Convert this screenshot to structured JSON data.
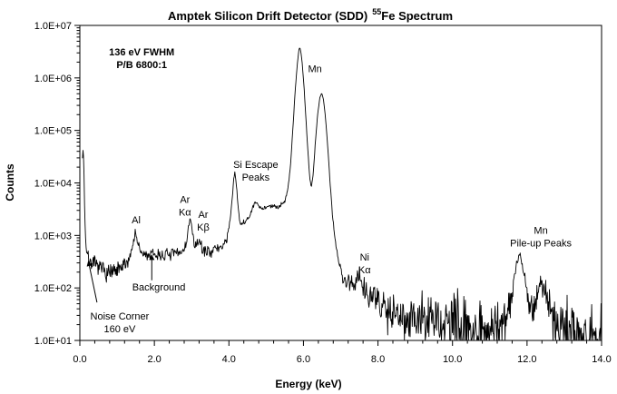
{
  "title": {
    "prefix": "Amptek Silicon Drift Detector (SDD)",
    "isotope": "55",
    "suffix": "Fe Spectrum"
  },
  "chart_data": {
    "type": "line",
    "title": "Amptek Silicon Drift Detector (SDD) 55Fe Spectrum",
    "xlabel": "Energy (keV)",
    "ylabel": "Counts",
    "grid": false,
    "legend": "none",
    "x_axis": {
      "min": 0,
      "max": 14,
      "major_step": 2,
      "minor_step": 0.4,
      "tick_labels": [
        "0.0",
        "2.0",
        "4.0",
        "6.0",
        "8.0",
        "10.0",
        "12.0",
        "14.0"
      ]
    },
    "y_axis": {
      "scale": "log",
      "min": 10,
      "max": 10000000,
      "tick_labels": [
        "1.0E+01",
        "1.0E+02",
        "1.0E+03",
        "1.0E+04",
        "1.0E+05",
        "1.0E+06",
        "1.0E+07"
      ]
    },
    "series": [
      {
        "name": "55Fe spectrum",
        "color": "#000000",
        "x": [
          0.07,
          0.09,
          0.11,
          0.13,
          0.16,
          0.2,
          0.25,
          0.32,
          0.42,
          0.55,
          0.7,
          0.85,
          1.0,
          1.15,
          1.28,
          1.38,
          1.44,
          1.49,
          1.54,
          1.6,
          1.7,
          1.85,
          2.0,
          2.2,
          2.4,
          2.6,
          2.75,
          2.86,
          2.92,
          2.96,
          3.0,
          3.06,
          3.12,
          3.16,
          3.19,
          3.23,
          3.3,
          3.4,
          3.55,
          3.7,
          3.85,
          3.95,
          4.03,
          4.09,
          4.13,
          4.16,
          4.2,
          4.25,
          4.3,
          4.36,
          4.45,
          4.55,
          4.63,
          4.7,
          4.76,
          4.83,
          4.92,
          5.0,
          5.1,
          5.2,
          5.3,
          5.4,
          5.5,
          5.58,
          5.65,
          5.72,
          5.78,
          5.84,
          5.88,
          5.9,
          5.93,
          5.97,
          6.02,
          6.07,
          6.12,
          6.17,
          6.21,
          6.26,
          6.32,
          6.38,
          6.44,
          6.49,
          6.54,
          6.6,
          6.66,
          6.72,
          6.78,
          6.84,
          6.91,
          6.98,
          7.06,
          7.15,
          7.25,
          7.35,
          7.44,
          7.5,
          7.56,
          7.65,
          7.78,
          7.92,
          8.1,
          8.3,
          8.55,
          8.8,
          9.1,
          9.4,
          9.8,
          10.2,
          10.6,
          11.0,
          11.3,
          11.5,
          11.62,
          11.72,
          11.82,
          11.9,
          11.98,
          12.06,
          12.15,
          12.25,
          12.33,
          12.4,
          12.48,
          12.58,
          12.7,
          12.9,
          13.2,
          13.6,
          14.0
        ],
        "y": [
          30000,
          48000,
          18000,
          2500,
          700,
          420,
          340,
          300,
          270,
          235,
          205,
          190,
          205,
          245,
          320,
          480,
          800,
          1200,
          800,
          520,
          430,
          420,
          430,
          420,
          430,
          450,
          500,
          700,
          1500,
          2100,
          1500,
          750,
          560,
          720,
          850,
          700,
          520,
          500,
          520,
          560,
          650,
          900,
          1800,
          5000,
          12000,
          16000,
          9000,
          3500,
          1700,
          1600,
          1850,
          2300,
          3200,
          4200,
          4000,
          3400,
          3300,
          3500,
          3600,
          3500,
          3550,
          3800,
          4600,
          7500,
          20000,
          120000,
          600000,
          2000000,
          3500000,
          3800000,
          3200000,
          1800000,
          600000,
          150000,
          40000,
          12000,
          8500,
          14000,
          60000,
          200000,
          420000,
          520000,
          380000,
          150000,
          40000,
          9000,
          2500,
          900,
          420,
          240,
          160,
          130,
          115,
          120,
          155,
          185,
          140,
          100,
          75,
          58,
          47,
          40,
          33,
          29,
          25,
          23,
          21,
          19,
          18,
          17,
          19,
          35,
          110,
          300,
          430,
          260,
          90,
          38,
          40,
          70,
          105,
          115,
          85,
          45,
          24,
          16,
          13,
          11,
          10
        ]
      }
    ],
    "noise": {
      "k": 1.2,
      "sigma_max": 0.4,
      "seed": 7,
      "sample_step_keV": 0.014
    },
    "annotations": [
      {
        "id": "resolution",
        "lines": [
          "136 eV FWHM",
          "P/B 6800:1"
        ],
        "bold": true,
        "keV": 1.66,
        "counts": 2400000
      },
      {
        "id": "al-peak",
        "lines": [
          "Al"
        ],
        "keV": 1.51,
        "counts": 2000
      },
      {
        "id": "ar-ka-peak",
        "lines": [
          "Ar",
          "Kα"
        ],
        "keV": 2.82,
        "counts": 3700
      },
      {
        "id": "ar-kb-peak",
        "lines": [
          "Ar",
          "Kβ"
        ],
        "keV": 3.31,
        "counts": 1900
      },
      {
        "id": "si-escape-peaks",
        "lines": [
          "Si Escape",
          "Peaks"
        ],
        "keV": 4.72,
        "counts": 17000
      },
      {
        "id": "mn-peak",
        "lines": [
          "Mn"
        ],
        "keV": 6.31,
        "counts": 1500000
      },
      {
        "id": "ni-ka-peak",
        "lines": [
          "Ni",
          "Kα"
        ],
        "keV": 7.64,
        "counts": 295
      },
      {
        "id": "mn-pileup-peaks",
        "lines": [
          "Mn",
          "Pile-up Peaks"
        ],
        "keV": 12.37,
        "counts": 950
      },
      {
        "id": "noise-corner",
        "lines": [
          "Noise Corner",
          "160 eV"
        ],
        "keV": 1.07,
        "counts": 22,
        "arrow": {
          "from_keV": 0.46,
          "from_counts": 53,
          "to_keV": 0.23,
          "to_counts": 320
        }
      },
      {
        "id": "background",
        "lines": [
          "Background"
        ],
        "keV": 2.12,
        "counts": 105,
        "arrow": {
          "from_keV": 1.93,
          "from_counts": 140,
          "to_keV": 1.93,
          "to_counts": 420
        }
      }
    ]
  }
}
